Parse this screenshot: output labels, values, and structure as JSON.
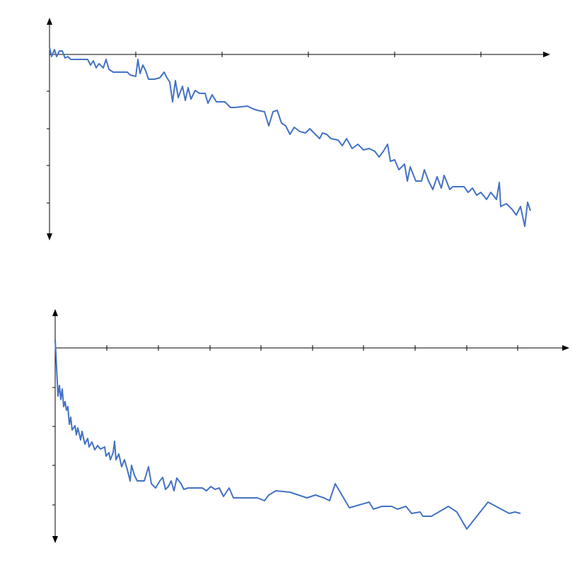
{
  "chart_data": [
    {
      "type": "line",
      "xlim": [
        0,
        708
      ],
      "xticks": [
        122,
        244,
        366,
        488,
        610
      ],
      "ylim": [
        -263,
        52
      ],
      "yticks": [
        -52,
        -105,
        -157,
        -210
      ],
      "series": [
        {
          "color": "#4472c4",
          "x": [
            0,
            3,
            7,
            10,
            14,
            18,
            22,
            26,
            30,
            45,
            54,
            58,
            62,
            66,
            70,
            76,
            80,
            84,
            90,
            110,
            114,
            122,
            125,
            128,
            132,
            136,
            140,
            148,
            156,
            162,
            166,
            170,
            174,
            178,
            182,
            188,
            192,
            196,
            200,
            206,
            212,
            220,
            224,
            230,
            236,
            248,
            256,
            262,
            280,
            288,
            294,
            304,
            310,
            316,
            322,
            328,
            334,
            340,
            346,
            354,
            362,
            368,
            376,
            382,
            386,
            392,
            398,
            408,
            414,
            420,
            428,
            436,
            444,
            452,
            460,
            466,
            472,
            478,
            482,
            488,
            494,
            502,
            506,
            510,
            518,
            526,
            530,
            536,
            542,
            548,
            554,
            558,
            566,
            570,
            586,
            592,
            598,
            604,
            610,
            618,
            624,
            632,
            636,
            638,
            646,
            654,
            660,
            666,
            672,
            676,
            680
          ],
          "values": [
            10,
            -3,
            7,
            -3,
            5,
            5,
            -5,
            -3,
            -7,
            -7,
            -7,
            -15,
            -9,
            -19,
            -13,
            -19,
            -7,
            -21,
            -25,
            -25,
            -29,
            -31,
            -7,
            -27,
            -15,
            -23,
            -35,
            -35,
            -33,
            -25,
            -33,
            -39,
            -67,
            -37,
            -61,
            -45,
            -65,
            -47,
            -63,
            -51,
            -55,
            -55,
            -69,
            -57,
            -67,
            -67,
            -75,
            -75,
            -73,
            -77,
            -79,
            -81,
            -101,
            -81,
            -79,
            -97,
            -101,
            -113,
            -103,
            -109,
            -111,
            -105,
            -113,
            -119,
            -111,
            -113,
            -119,
            -121,
            -129,
            -119,
            -133,
            -127,
            -135,
            -133,
            -137,
            -145,
            -137,
            -127,
            -151,
            -149,
            -163,
            -155,
            -179,
            -159,
            -179,
            -179,
            -163,
            -179,
            -191,
            -173,
            -189,
            -171,
            -191,
            -187,
            -187,
            -195,
            -189,
            -199,
            -195,
            -205,
            -195,
            -205,
            -181,
            -215,
            -211,
            -219,
            -227,
            -215,
            -243,
            -209,
            -221
          ]
        }
      ]
    },
    {
      "type": "line",
      "xlim": [
        0,
        727
      ],
      "xticks": [
        73,
        146,
        219,
        291,
        364,
        436,
        509,
        582,
        654
      ],
      "ylim": [
        -276,
        55
      ],
      "yticks": [
        -56,
        -111,
        -166,
        -222
      ],
      "series": [
        {
          "color": "#4472c4",
          "x": [
            0,
            2,
            4,
            6,
            8,
            10,
            12,
            14,
            16,
            18,
            20,
            22,
            24,
            28,
            30,
            32,
            36,
            38,
            42,
            46,
            48,
            52,
            56,
            60,
            64,
            70,
            72,
            76,
            78,
            82,
            84,
            86,
            90,
            94,
            98,
            102,
            106,
            108,
            112,
            116,
            126,
            132,
            136,
            142,
            148,
            152,
            156,
            160,
            164,
            168,
            172,
            178,
            182,
            188,
            208,
            214,
            220,
            226,
            232,
            238,
            246,
            252,
            286,
            296,
            302,
            312,
            332,
            356,
            368,
            380,
            388,
            396,
            416,
            444,
            450,
            462,
            476,
            484,
            496,
            504,
            516,
            520,
            532,
            556,
            568,
            582,
            612,
            642,
            650,
            658
          ],
          "values": [
            12,
            -28,
            -68,
            -53,
            -73,
            -58,
            -83,
            -76,
            -88,
            -83,
            -108,
            -98,
            -116,
            -110,
            -123,
            -113,
            -130,
            -118,
            -136,
            -128,
            -140,
            -133,
            -144,
            -138,
            -143,
            -140,
            -153,
            -148,
            -158,
            -148,
            -132,
            -158,
            -150,
            -168,
            -158,
            -172,
            -188,
            -166,
            -180,
            -188,
            -188,
            -168,
            -192,
            -198,
            -188,
            -183,
            -200,
            -196,
            -188,
            -202,
            -184,
            -192,
            -200,
            -198,
            -198,
            -202,
            -196,
            -200,
            -198,
            -210,
            -198,
            -212,
            -212,
            -216,
            -208,
            -202,
            -204,
            -212,
            -208,
            -212,
            -216,
            -192,
            -226,
            -218,
            -228,
            -224,
            -224,
            -228,
            -224,
            -234,
            -232,
            -238,
            -238,
            -224,
            -232,
            -256,
            -218,
            -234,
            -232,
            -234
          ]
        }
      ]
    }
  ]
}
